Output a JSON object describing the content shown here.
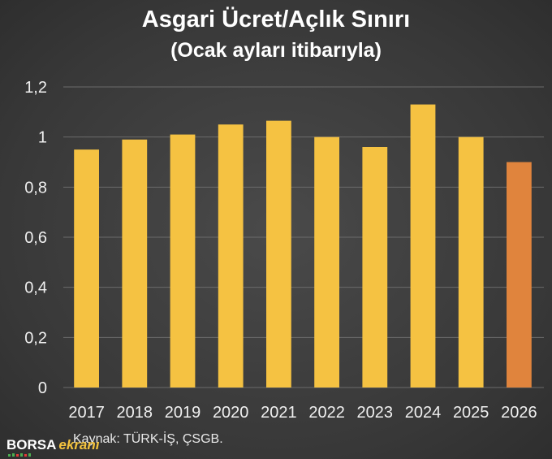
{
  "header": {
    "title": "Asgari Ücret/Açlık Sınırı",
    "subtitle": "(Ocak ayları itibarıyla)"
  },
  "footer": {
    "source": "Kaynak: TÜRK-İŞ, ÇSGB.",
    "logo_borsa": "BORSA",
    "logo_ekrani": "ekranı"
  },
  "colors": {
    "bar": "#f5c242",
    "bar_highlight": "#e0843d",
    "grid": "#6b6b6b",
    "logo_accent": "#f4c33e"
  },
  "chart_data": {
    "type": "bar",
    "title": "Asgari Ücret/Açlık Sınırı",
    "subtitle": "(Ocak ayları itibarıyla)",
    "categories": [
      "2017",
      "2018",
      "2019",
      "2020",
      "2021",
      "2022",
      "2023",
      "2024",
      "2025",
      "2026"
    ],
    "values": [
      0.95,
      0.99,
      1.01,
      1.05,
      1.065,
      1.0,
      0.96,
      1.13,
      1.0,
      0.9
    ],
    "highlight_index": 9,
    "ylim": [
      0,
      1.2
    ],
    "yticks": [
      "0",
      "0,2",
      "0,4",
      "0,6",
      "0,8",
      "1",
      "1,2"
    ],
    "grid": true,
    "legend": "none"
  }
}
